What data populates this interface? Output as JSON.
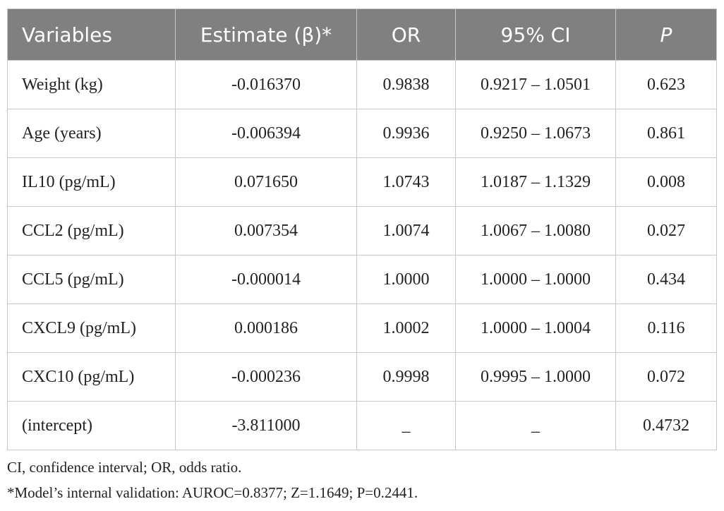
{
  "table": {
    "header": [
      "Variables",
      "Estimate (β)*",
      "OR",
      "95% CI",
      "P"
    ],
    "rows": [
      [
        "Weight (kg)",
        "-0.016370",
        "0.9838",
        "0.9217 – 1.0501",
        "0.623"
      ],
      [
        "Age (years)",
        "-0.006394",
        "0.9936",
        "0.9250 – 1.0673",
        "0.861"
      ],
      [
        "IL10 (pg/mL)",
        "0.071650",
        "1.0743",
        "1.0187 – 1.1329",
        "0.008"
      ],
      [
        "CCL2 (pg/mL)",
        "0.007354",
        "1.0074",
        "1.0067 – 1.0080",
        "0.027"
      ],
      [
        "CCL5 (pg/mL)",
        "-0.000014",
        "1.0000",
        "1.0000 – 1.0000",
        "0.434"
      ],
      [
        "CXCL9 (pg/mL)",
        "0.000186",
        "1.0002",
        "1.0000 – 1.0004",
        "0.116"
      ],
      [
        "CXC10 (pg/mL)",
        "-0.000236",
        "0.9998",
        "0.9995 – 1.0000",
        "0.072"
      ],
      [
        "(intercept)",
        "-3.811000",
        "_",
        "_",
        "0.4732"
      ]
    ]
  },
  "footnotes": [
    "CI, confidence interval; OR, odds ratio.",
    "*Model’s internal validation: AUROC=0.8377; Z=1.1649; P=0.2441."
  ]
}
